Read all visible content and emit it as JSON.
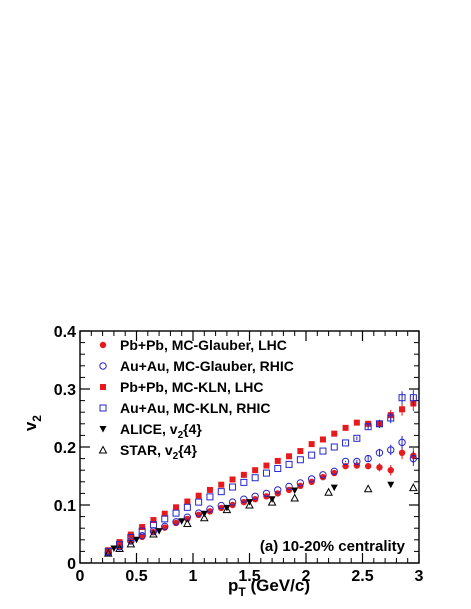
{
  "chart_data": {
    "type": "scatter",
    "title": "",
    "xlabel": {
      "main": "p",
      "sub": "T",
      "rest": " (GeV/c)"
    },
    "ylabel": {
      "main": "v",
      "sub": "2"
    },
    "xlim": [
      0,
      3
    ],
    "ylim": [
      0,
      0.4
    ],
    "x_ticks": [
      "0",
      "0.5",
      "1",
      "1.5",
      "2",
      "2.5",
      "3"
    ],
    "y_ticks": [
      "0",
      "0.1",
      "0.2",
      "0.3",
      "0.4"
    ],
    "grid": false,
    "legend_position": "top-left",
    "annotation": "(a) 10-20% centrality",
    "series": [
      {
        "name": "Pb+Pb, MC-Glauber, LHC",
        "marker": "filled-circle",
        "color": "#e8191c",
        "x": [
          0.25,
          0.35,
          0.45,
          0.55,
          0.65,
          0.75,
          0.85,
          0.95,
          1.05,
          1.15,
          1.25,
          1.35,
          1.45,
          1.55,
          1.65,
          1.75,
          1.85,
          1.95,
          2.05,
          2.15,
          2.25,
          2.35,
          2.45,
          2.55,
          2.65,
          2.75,
          2.85,
          2.95
        ],
        "y": [
          0.018,
          0.028,
          0.037,
          0.045,
          0.053,
          0.061,
          0.069,
          0.076,
          0.083,
          0.089,
          0.095,
          0.1,
          0.105,
          0.11,
          0.115,
          0.12,
          0.126,
          0.133,
          0.14,
          0.148,
          0.155,
          0.167,
          0.168,
          0.167,
          0.165,
          0.16,
          0.19,
          0.185
        ]
      },
      {
        "name": "Au+Au, MC-Glauber, RHIC",
        "marker": "open-circle",
        "color": "#2626c8",
        "x": [
          0.25,
          0.35,
          0.45,
          0.55,
          0.65,
          0.75,
          0.85,
          0.95,
          1.05,
          1.15,
          1.25,
          1.35,
          1.45,
          1.55,
          1.65,
          1.75,
          1.85,
          1.95,
          2.05,
          2.15,
          2.25,
          2.35,
          2.45,
          2.55,
          2.65,
          2.75,
          2.85,
          2.95
        ],
        "y": [
          0.018,
          0.028,
          0.038,
          0.047,
          0.055,
          0.063,
          0.071,
          0.079,
          0.086,
          0.093,
          0.099,
          0.105,
          0.11,
          0.115,
          0.12,
          0.126,
          0.132,
          0.138,
          0.145,
          0.152,
          0.158,
          0.175,
          0.175,
          0.18,
          0.19,
          0.195,
          0.208,
          0.18
        ]
      },
      {
        "name": "Pb+Pb, MC-KLN, LHC",
        "marker": "filled-square",
        "color": "#e8191c",
        "x": [
          0.25,
          0.35,
          0.45,
          0.55,
          0.65,
          0.75,
          0.85,
          0.95,
          1.05,
          1.15,
          1.25,
          1.35,
          1.45,
          1.55,
          1.65,
          1.75,
          1.85,
          1.95,
          2.05,
          2.15,
          2.25,
          2.35,
          2.45,
          2.55,
          2.65,
          2.75,
          2.85,
          2.95
        ],
        "y": [
          0.022,
          0.036,
          0.049,
          0.062,
          0.074,
          0.085,
          0.096,
          0.106,
          0.116,
          0.126,
          0.135,
          0.144,
          0.152,
          0.16,
          0.168,
          0.176,
          0.184,
          0.193,
          0.205,
          0.213,
          0.223,
          0.233,
          0.242,
          0.24,
          0.24,
          0.255,
          0.265,
          0.275
        ]
      },
      {
        "name": "Au+Au, MC-KLN, RHIC",
        "marker": "open-square",
        "color": "#2626c8",
        "x": [
          0.25,
          0.35,
          0.45,
          0.55,
          0.65,
          0.75,
          0.85,
          0.95,
          1.05,
          1.15,
          1.25,
          1.35,
          1.45,
          1.55,
          1.65,
          1.75,
          1.85,
          1.95,
          2.05,
          2.15,
          2.25,
          2.35,
          2.45,
          2.55,
          2.65,
          2.75,
          2.85,
          2.95
        ],
        "y": [
          0.02,
          0.032,
          0.044,
          0.055,
          0.066,
          0.076,
          0.086,
          0.096,
          0.105,
          0.114,
          0.123,
          0.131,
          0.139,
          0.147,
          0.155,
          0.163,
          0.17,
          0.178,
          0.186,
          0.193,
          0.2,
          0.207,
          0.215,
          0.235,
          0.24,
          0.25,
          0.285,
          0.285
        ]
      },
      {
        "name": "ALICE, v2{4}",
        "marker": "filled-triangle-down",
        "color": "#000000",
        "x": [
          0.3,
          0.5,
          0.7,
          0.9,
          1.1,
          1.3,
          1.5,
          1.7,
          1.9,
          2.25,
          2.75
        ],
        "y": [
          0.025,
          0.04,
          0.055,
          0.072,
          0.085,
          0.095,
          0.105,
          0.11,
          0.125,
          0.13,
          0.135
        ]
      },
      {
        "name": "STAR, v2{4}",
        "marker": "open-triangle-up",
        "color": "#000000",
        "x": [
          0.25,
          0.35,
          0.45,
          0.65,
          0.95,
          1.1,
          1.3,
          1.5,
          1.7,
          1.9,
          2.2,
          2.55,
          2.95
        ],
        "y": [
          0.017,
          0.025,
          0.033,
          0.05,
          0.068,
          0.078,
          0.092,
          0.1,
          0.105,
          0.112,
          0.122,
          0.128,
          0.13
        ]
      }
    ]
  }
}
